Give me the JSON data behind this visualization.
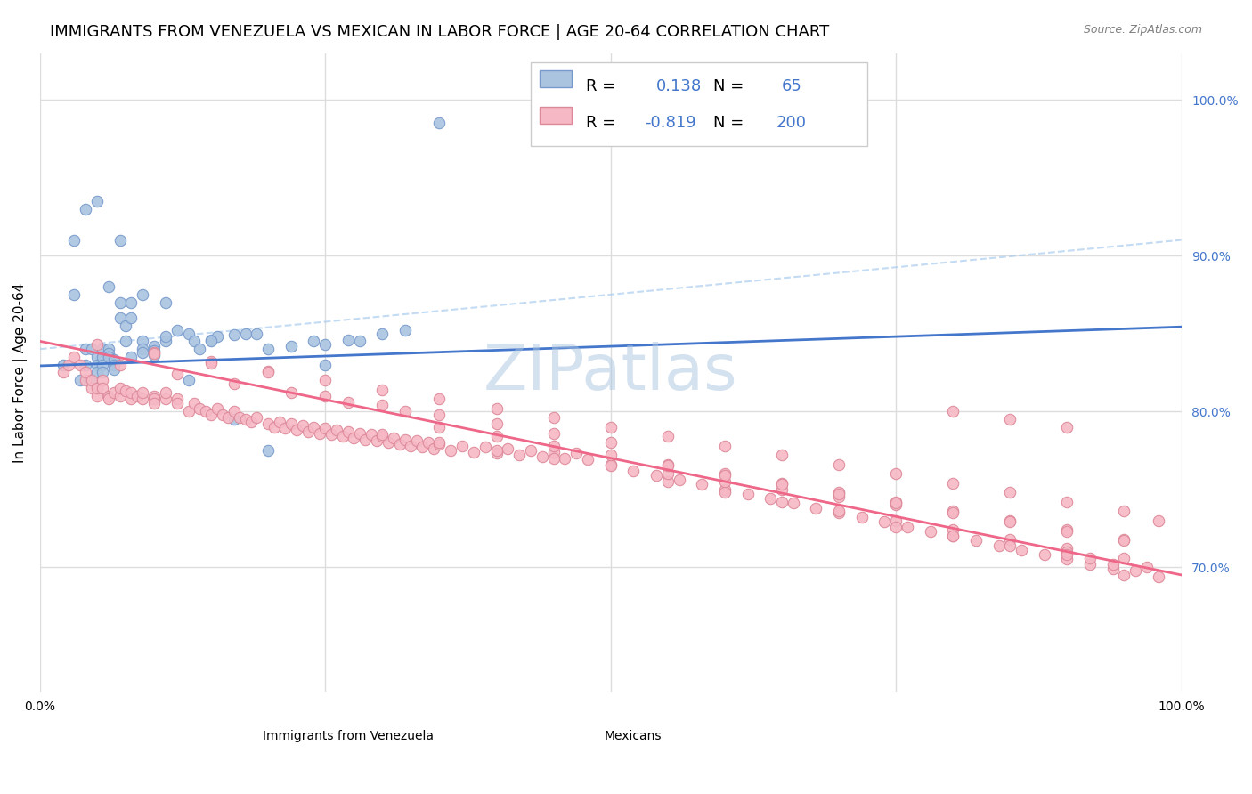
{
  "title": "IMMIGRANTS FROM VENEZUELA VS MEXICAN IN LABOR FORCE | AGE 20-64 CORRELATION CHART",
  "source_text": "Source: ZipAtlas.com",
  "xlabel": "",
  "ylabel": "In Labor Force | Age 20-64",
  "xlim": [
    0.0,
    1.0
  ],
  "ylim_pct": [
    0.62,
    1.03
  ],
  "x_ticks": [
    0.0,
    0.25,
    0.5,
    0.75,
    1.0
  ],
  "x_tick_labels": [
    "0.0%",
    "",
    "",
    "",
    "100.0%"
  ],
  "y_tick_labels_right": [
    "100.0%",
    "90.0%",
    "80.0%",
    "70.0%"
  ],
  "y_tick_values_right": [
    1.0,
    0.9,
    0.8,
    0.7
  ],
  "r_venezuela": 0.138,
  "n_venezuela": 65,
  "r_mexican": -0.819,
  "n_mexican": 200,
  "watermark": "ZIPatlas",
  "watermark_color": "#aac4e0",
  "scatter_venezuela_color": "#aac4e0",
  "scatter_mexican_color": "#f5b8c4",
  "line_venezuela_color": "#4477cc",
  "line_mexican_color": "#ee6688",
  "background_color": "#ffffff",
  "grid_color": "#dddddd",
  "title_fontsize": 13,
  "axis_label_fontsize": 11,
  "tick_fontsize": 10,
  "legend_fontsize": 13,
  "venezuela_x": [
    0.02,
    0.03,
    0.035,
    0.04,
    0.04,
    0.045,
    0.045,
    0.05,
    0.05,
    0.05,
    0.055,
    0.055,
    0.055,
    0.055,
    0.06,
    0.06,
    0.06,
    0.065,
    0.065,
    0.065,
    0.07,
    0.07,
    0.075,
    0.075,
    0.08,
    0.08,
    0.09,
    0.09,
    0.09,
    0.1,
    0.1,
    0.1,
    0.11,
    0.11,
    0.12,
    0.13,
    0.135,
    0.14,
    0.15,
    0.155,
    0.17,
    0.18,
    0.19,
    0.2,
    0.22,
    0.24,
    0.25,
    0.27,
    0.3,
    0.32,
    0.03,
    0.04,
    0.05,
    0.06,
    0.07,
    0.08,
    0.09,
    0.11,
    0.13,
    0.15,
    0.17,
    0.2,
    0.25,
    0.28,
    0.35
  ],
  "venezuela_y": [
    0.83,
    0.875,
    0.82,
    0.84,
    0.83,
    0.82,
    0.84,
    0.835,
    0.83,
    0.825,
    0.84,
    0.835,
    0.83,
    0.825,
    0.84,
    0.837,
    0.835,
    0.833,
    0.83,
    0.827,
    0.86,
    0.87,
    0.845,
    0.855,
    0.86,
    0.835,
    0.845,
    0.84,
    0.838,
    0.842,
    0.839,
    0.836,
    0.845,
    0.848,
    0.852,
    0.85,
    0.845,
    0.84,
    0.846,
    0.848,
    0.849,
    0.85,
    0.85,
    0.84,
    0.842,
    0.845,
    0.843,
    0.846,
    0.85,
    0.852,
    0.91,
    0.93,
    0.935,
    0.88,
    0.91,
    0.87,
    0.875,
    0.87,
    0.82,
    0.845,
    0.795,
    0.775,
    0.83,
    0.845,
    0.985
  ],
  "mexican_x": [
    0.02,
    0.025,
    0.03,
    0.035,
    0.04,
    0.04,
    0.045,
    0.045,
    0.05,
    0.05,
    0.055,
    0.055,
    0.06,
    0.06,
    0.065,
    0.07,
    0.07,
    0.075,
    0.08,
    0.08,
    0.085,
    0.09,
    0.09,
    0.1,
    0.1,
    0.1,
    0.11,
    0.11,
    0.12,
    0.12,
    0.13,
    0.135,
    0.14,
    0.145,
    0.15,
    0.155,
    0.16,
    0.165,
    0.17,
    0.175,
    0.18,
    0.185,
    0.19,
    0.2,
    0.205,
    0.21,
    0.215,
    0.22,
    0.225,
    0.23,
    0.235,
    0.24,
    0.245,
    0.25,
    0.255,
    0.26,
    0.265,
    0.27,
    0.275,
    0.28,
    0.285,
    0.29,
    0.295,
    0.3,
    0.305,
    0.31,
    0.315,
    0.32,
    0.325,
    0.33,
    0.335,
    0.34,
    0.345,
    0.35,
    0.36,
    0.37,
    0.38,
    0.39,
    0.4,
    0.41,
    0.42,
    0.43,
    0.44,
    0.45,
    0.46,
    0.47,
    0.48,
    0.5,
    0.52,
    0.54,
    0.56,
    0.58,
    0.6,
    0.62,
    0.64,
    0.66,
    0.68,
    0.7,
    0.72,
    0.74,
    0.76,
    0.78,
    0.8,
    0.82,
    0.84,
    0.86,
    0.88,
    0.9,
    0.92,
    0.94,
    0.55,
    0.6,
    0.65,
    0.7,
    0.75,
    0.8,
    0.85,
    0.9,
    0.95,
    0.97,
    0.3,
    0.35,
    0.4,
    0.45,
    0.5,
    0.55,
    0.6,
    0.65,
    0.7,
    0.75,
    0.8,
    0.85,
    0.9,
    0.35,
    0.4,
    0.45,
    0.5,
    0.55,
    0.6,
    0.65,
    0.7,
    0.75,
    0.8,
    0.85,
    0.9,
    0.95,
    0.55,
    0.6,
    0.65,
    0.7,
    0.75,
    0.8,
    0.85,
    0.9,
    0.95,
    0.9,
    0.92,
    0.94,
    0.96,
    0.98,
    0.25,
    0.3,
    0.35,
    0.4,
    0.45,
    0.5,
    0.1,
    0.15,
    0.2,
    0.25,
    0.3,
    0.35,
    0.4,
    0.45,
    0.5,
    0.55,
    0.6,
    0.65,
    0.7,
    0.75,
    0.8,
    0.85,
    0.9,
    0.95,
    0.98,
    0.75,
    0.8,
    0.85,
    0.9,
    0.95,
    0.05,
    0.1,
    0.15,
    0.2,
    0.07,
    0.12,
    0.17,
    0.22,
    0.27,
    0.32
  ],
  "mexican_y": [
    0.825,
    0.83,
    0.835,
    0.83,
    0.82,
    0.825,
    0.815,
    0.82,
    0.81,
    0.815,
    0.82,
    0.815,
    0.81,
    0.808,
    0.812,
    0.81,
    0.815,
    0.813,
    0.808,
    0.812,
    0.81,
    0.808,
    0.812,
    0.81,
    0.808,
    0.805,
    0.808,
    0.812,
    0.808,
    0.805,
    0.8,
    0.805,
    0.802,
    0.8,
    0.798,
    0.802,
    0.798,
    0.796,
    0.8,
    0.796,
    0.795,
    0.793,
    0.796,
    0.792,
    0.79,
    0.793,
    0.789,
    0.792,
    0.788,
    0.791,
    0.787,
    0.79,
    0.786,
    0.789,
    0.785,
    0.788,
    0.784,
    0.787,
    0.783,
    0.786,
    0.782,
    0.785,
    0.781,
    0.784,
    0.78,
    0.783,
    0.779,
    0.782,
    0.778,
    0.781,
    0.777,
    0.78,
    0.776,
    0.779,
    0.775,
    0.778,
    0.774,
    0.777,
    0.773,
    0.776,
    0.772,
    0.775,
    0.771,
    0.774,
    0.77,
    0.773,
    0.769,
    0.766,
    0.762,
    0.759,
    0.756,
    0.753,
    0.75,
    0.747,
    0.744,
    0.741,
    0.738,
    0.735,
    0.732,
    0.729,
    0.726,
    0.723,
    0.72,
    0.717,
    0.714,
    0.711,
    0.708,
    0.705,
    0.702,
    0.699,
    0.755,
    0.748,
    0.742,
    0.736,
    0.73,
    0.724,
    0.718,
    0.712,
    0.706,
    0.7,
    0.785,
    0.78,
    0.775,
    0.77,
    0.765,
    0.76,
    0.755,
    0.75,
    0.745,
    0.74,
    0.8,
    0.795,
    0.79,
    0.79,
    0.784,
    0.778,
    0.772,
    0.766,
    0.76,
    0.754,
    0.748,
    0.742,
    0.736,
    0.73,
    0.724,
    0.718,
    0.765,
    0.759,
    0.753,
    0.747,
    0.741,
    0.735,
    0.729,
    0.723,
    0.717,
    0.71,
    0.706,
    0.702,
    0.698,
    0.694,
    0.81,
    0.804,
    0.798,
    0.792,
    0.786,
    0.78,
    0.838,
    0.832,
    0.826,
    0.82,
    0.814,
    0.808,
    0.802,
    0.796,
    0.79,
    0.784,
    0.778,
    0.772,
    0.766,
    0.76,
    0.754,
    0.748,
    0.742,
    0.736,
    0.73,
    0.726,
    0.72,
    0.714,
    0.708,
    0.695,
    0.843,
    0.837,
    0.831,
    0.825,
    0.83,
    0.824,
    0.818,
    0.812,
    0.806,
    0.8
  ]
}
